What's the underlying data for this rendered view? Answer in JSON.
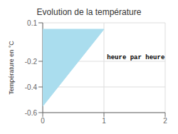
{
  "chart_data": {
    "type": "polygon",
    "title": "Evolution de la température",
    "ylabel": "Température en °C",
    "annotation": {
      "text": "heure par heure",
      "x": 1.05,
      "y": -0.15
    },
    "x": [
      0,
      1,
      0
    ],
    "values": [
      0.05,
      0.05,
      -0.55
    ],
    "color": "#aaddee",
    "xlim": [
      0,
      2
    ],
    "xticks": [
      0,
      1,
      2
    ],
    "ylim": [
      -0.6,
      0.1
    ],
    "yticks": [
      0.1,
      -0.2,
      -0.4,
      -0.6
    ],
    "grid": true
  }
}
